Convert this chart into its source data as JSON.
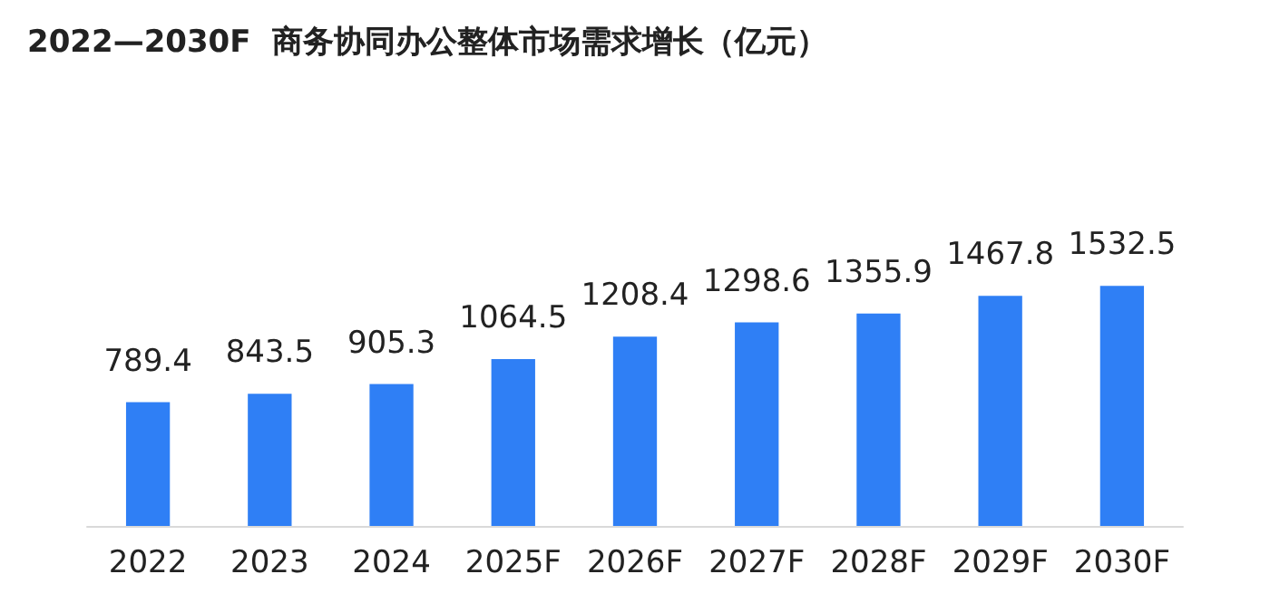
{
  "chart_data": {
    "type": "bar",
    "title": "2022—2030F  商务协同办公整体市场需求增长（亿元）",
    "categories": [
      "2022",
      "2023",
      "2024",
      "2025F",
      "2026F",
      "2027F",
      "2028F",
      "2029F",
      "2030F"
    ],
    "values": [
      789.4,
      843.5,
      905.3,
      1064.5,
      1208.4,
      1298.6,
      1355.9,
      1467.8,
      1532.5
    ],
    "color": "#2f7ff5",
    "data_labels": true,
    "grid": false
  }
}
